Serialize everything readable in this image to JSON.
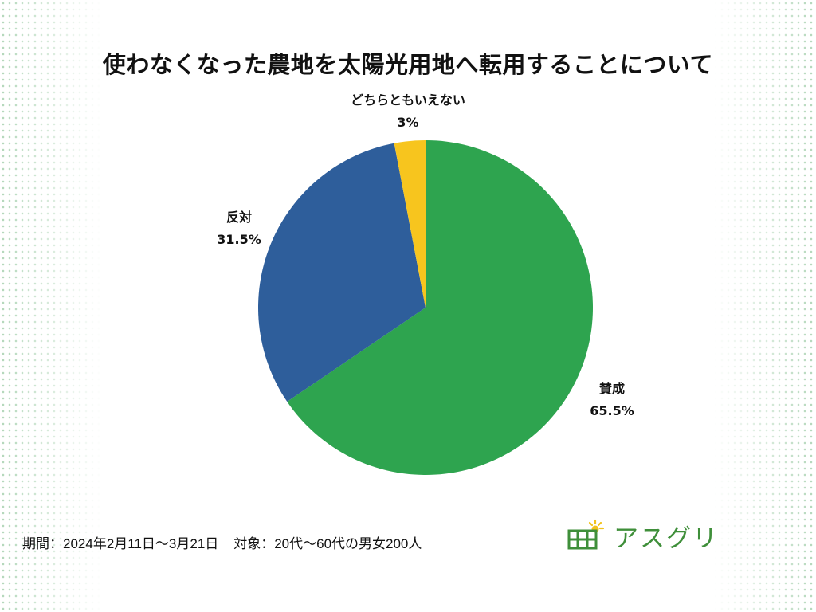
{
  "title": "使わなくなった農地を太陽光用地へ転用することについて",
  "footer": {
    "period_label": "期間：",
    "period_value": "2024年2月11日～3月21日",
    "target_label": "対象：",
    "target_value": "20代～60代の男女200人"
  },
  "logo": {
    "text": "アスグリ",
    "icon": "solar-panel-sun-icon"
  },
  "colors": {
    "agree": "#2ea44f",
    "disagree": "#2e5e9b",
    "neutral": "#f7c51e",
    "dots": "#4aa05a"
  },
  "chart_data": {
    "type": "pie",
    "title": "使わなくなった農地を太陽光用地へ転用することについて",
    "unit": "%",
    "start": "12 o'clock",
    "direction": "clockwise",
    "slices": [
      {
        "label": "賛成",
        "value": 65.5,
        "value_text": "65.5%",
        "color": "#2ea44f"
      },
      {
        "label": "反対",
        "value": 31.5,
        "value_text": "31.5%",
        "color": "#2e5e9b"
      },
      {
        "label": "どちらともいえない",
        "value": 3,
        "value_text": "3%",
        "color": "#f7c51e"
      }
    ]
  }
}
